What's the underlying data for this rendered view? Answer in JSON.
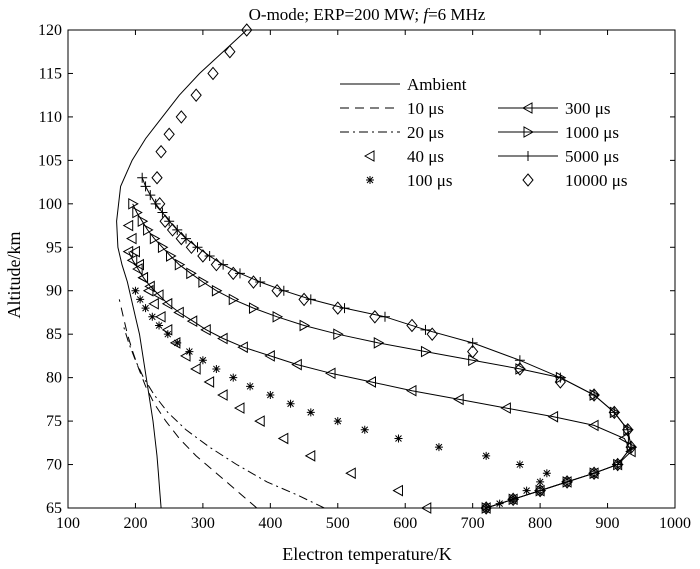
{
  "chart_data": {
    "type": "line",
    "title": "O-mode; ERP=200 MW; f=6 MHz",
    "title_parts": {
      "prefix": "O-mode; ERP=200 MW; ",
      "italic": "f",
      "suffix": "=6 MHz"
    },
    "xlabel": "Electron temperature/K",
    "ylabel": "Altitude/km",
    "xlim": [
      100,
      1000
    ],
    "ylim": [
      65,
      120
    ],
    "x_ticks": [
      100,
      200,
      300,
      400,
      500,
      600,
      700,
      800,
      900,
      1000
    ],
    "y_ticks": [
      65,
      70,
      75,
      80,
      85,
      90,
      95,
      100,
      105,
      110,
      115,
      120
    ],
    "legend_position": "top-right",
    "series": [
      {
        "name": "Ambient",
        "style": "solid",
        "marker": "none",
        "x": [
          238,
          236,
          234,
          232,
          229,
          226,
          222,
          218,
          214,
          210,
          206,
          200,
          194,
          188,
          180,
          174,
          172,
          178,
          195,
          215,
          240,
          265,
          295,
          330,
          365
        ],
        "y": [
          65,
          67,
          69,
          71,
          73,
          75,
          77,
          79,
          81,
          83,
          85,
          87,
          89,
          91,
          93,
          95,
          98,
          102,
          105,
          107.5,
          110,
          112.5,
          115,
          117.5,
          120
        ]
      },
      {
        "name": "10 μs",
        "style": "dashed",
        "marker": "none",
        "x": [
          380,
          350,
          320,
          290,
          265,
          245,
          228,
          215,
          205,
          196,
          188,
          182,
          176
        ],
        "y": [
          65,
          67,
          69,
          71,
          73,
          75,
          77,
          79,
          81,
          83,
          85,
          87,
          89
        ]
      },
      {
        "name": "20 μs",
        "style": "dashdot",
        "marker": "none",
        "x": [
          480,
          440,
          395,
          350,
          310,
          275,
          248,
          228,
          212,
          200,
          190,
          182
        ],
        "y": [
          65,
          66.5,
          68,
          70,
          72,
          74,
          76,
          78,
          80,
          82,
          84,
          86
        ]
      },
      {
        "name": "40 μs",
        "style": "none",
        "marker": "triangle-left",
        "x": [
          632,
          590,
          520,
          460,
          420,
          385,
          355,
          330,
          310,
          290,
          275,
          260,
          248,
          238,
          228,
          220,
          212,
          206,
          200,
          195,
          190
        ],
        "y": [
          65,
          67,
          69,
          71,
          73,
          75,
          76.5,
          78,
          79.5,
          81,
          82.5,
          84,
          85.5,
          87,
          88.5,
          90,
          91.5,
          93,
          94.5,
          96,
          97.5
        ]
      },
      {
        "name": "100 μs",
        "style": "none",
        "marker": "star",
        "x": [
          720,
          740,
          760,
          780,
          800,
          810,
          770,
          720,
          650,
          590,
          540,
          500,
          460,
          430,
          400,
          370,
          345,
          320,
          300,
          280,
          262,
          248,
          235,
          225,
          215,
          207,
          200
        ],
        "y": [
          65,
          65.5,
          66,
          67,
          68,
          69,
          70,
          71,
          72,
          73,
          74,
          75,
          76,
          77,
          78,
          79,
          80,
          81,
          82,
          83,
          84,
          85,
          86,
          87,
          88,
          89,
          90
        ]
      },
      {
        "name": "300 μs",
        "style": "solid",
        "marker": "triangle-left",
        "x": [
          720,
          760,
          800,
          840,
          880,
          915,
          935,
          925,
          880,
          820,
          750,
          680,
          610,
          550,
          490,
          440,
          400,
          360,
          330,
          305,
          285,
          265,
          248,
          235,
          222,
          212,
          204,
          196,
          190
        ],
        "y": [
          65,
          66,
          67,
          68,
          69,
          70,
          71.5,
          73,
          74.5,
          75.5,
          76.5,
          77.5,
          78.5,
          79.5,
          80.5,
          81.5,
          82.5,
          83.5,
          84.5,
          85.5,
          86.5,
          87.5,
          88.5,
          89.5,
          90.5,
          91.5,
          92.5,
          93.5,
          94.5
        ]
      },
      {
        "name": "1000 μs",
        "style": "solid",
        "marker": "triangle-right",
        "x": [
          720,
          760,
          800,
          840,
          880,
          915,
          935,
          930,
          910,
          880,
          830,
          770,
          700,
          630,
          560,
          500,
          450,
          410,
          375,
          345,
          320,
          300,
          282,
          265,
          252,
          240,
          228,
          218,
          210,
          202,
          196
        ],
        "y": [
          65,
          66,
          67,
          68,
          69,
          70,
          72,
          74,
          76,
          78,
          80,
          81,
          82,
          83,
          84,
          85,
          86,
          87,
          88,
          89,
          90,
          91,
          92,
          93,
          94,
          95,
          96,
          97,
          98,
          99,
          100
        ]
      },
      {
        "name": "5000 μs",
        "style": "solid",
        "marker": "plus",
        "x": [
          720,
          760,
          800,
          840,
          880,
          915,
          935,
          930,
          910,
          880,
          830,
          770,
          700,
          630,
          570,
          510,
          460,
          420,
          385,
          355,
          330,
          310,
          292,
          275,
          262,
          250,
          240,
          230,
          222,
          215,
          210
        ],
        "y": [
          65,
          66,
          67,
          68,
          69,
          70,
          72,
          74,
          76,
          78,
          80,
          82,
          84,
          85.5,
          87,
          88,
          89,
          90,
          91,
          92,
          93,
          94,
          95,
          96,
          97,
          98,
          99,
          100,
          101,
          102,
          103
        ]
      },
      {
        "name": "10000 μs",
        "style": "none",
        "marker": "diamond",
        "x": [
          720,
          760,
          800,
          840,
          880,
          915,
          935,
          930,
          910,
          880,
          830,
          770,
          700,
          640,
          610,
          555,
          500,
          450,
          410,
          375,
          345,
          320,
          300,
          283,
          268,
          255,
          244,
          236,
          232,
          238,
          250,
          268,
          290,
          315,
          340,
          365
        ],
        "y": [
          65,
          66,
          67,
          68,
          69,
          70,
          72,
          74,
          76,
          78,
          79.5,
          81,
          83,
          85,
          86,
          87,
          88,
          89,
          90,
          91,
          92,
          93,
          94,
          95,
          96,
          97,
          98,
          100,
          103,
          106,
          108,
          110,
          112.5,
          115,
          117.5,
          120
        ]
      }
    ]
  }
}
